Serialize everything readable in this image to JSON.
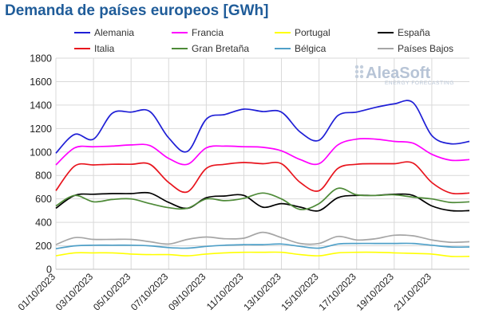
{
  "chart_data": {
    "type": "line",
    "title": "Demanda de países europeos [GWh]",
    "xlabel": "",
    "ylabel": "",
    "ylim": [
      0,
      1800
    ],
    "yticks": [
      0,
      200,
      400,
      600,
      800,
      1000,
      1200,
      1400,
      1600,
      1800
    ],
    "grid": true,
    "legend": "top",
    "x": [
      "01/10/2023",
      "02/10/2023",
      "03/10/2023",
      "04/10/2023",
      "05/10/2023",
      "06/10/2023",
      "07/10/2023",
      "08/10/2023",
      "09/10/2023",
      "10/10/2023",
      "11/10/2023",
      "12/10/2023",
      "13/10/2023",
      "14/10/2023",
      "15/10/2023",
      "16/10/2023",
      "17/10/2023",
      "18/10/2023",
      "19/10/2023",
      "20/10/2023",
      "21/10/2023",
      "22/10/2023",
      "23/10/2023"
    ],
    "xtick_labels": [
      "01/10/2023",
      "03/10/2023",
      "05/10/2023",
      "07/10/2023",
      "09/10/2023",
      "11/10/2023",
      "13/10/2023",
      "15/10/2023",
      "17/10/2023",
      "19/10/2023",
      "21/10/2023"
    ],
    "series": [
      {
        "name": "Alemania",
        "color": "#1f1fd6",
        "values": [
          990,
          1150,
          1110,
          1330,
          1340,
          1345,
          1120,
          1005,
          1280,
          1320,
          1365,
          1345,
          1340,
          1170,
          1100,
          1310,
          1340,
          1380,
          1410,
          1420,
          1140,
          1070,
          1090
        ]
      },
      {
        "name": "Francia",
        "color": "#ff00ff",
        "values": [
          890,
          1035,
          1045,
          1050,
          1060,
          1055,
          945,
          895,
          1035,
          1050,
          1045,
          1040,
          1010,
          935,
          900,
          1060,
          1110,
          1110,
          1090,
          1075,
          980,
          930,
          935
        ]
      },
      {
        "name": "Portugal",
        "color": "#ffff00",
        "values": [
          115,
          140,
          140,
          140,
          130,
          125,
          125,
          115,
          130,
          140,
          145,
          145,
          145,
          125,
          115,
          140,
          145,
          145,
          140,
          135,
          130,
          110,
          110
        ]
      },
      {
        "name": "España",
        "color": "#000000",
        "values": [
          520,
          630,
          640,
          645,
          645,
          650,
          570,
          520,
          610,
          625,
          630,
          530,
          560,
          530,
          500,
          610,
          630,
          630,
          640,
          630,
          540,
          500,
          500
        ]
      },
      {
        "name": "Italia",
        "color": "#e8141d",
        "values": [
          670,
          880,
          890,
          895,
          895,
          895,
          740,
          660,
          860,
          895,
          910,
          900,
          900,
          740,
          670,
          860,
          895,
          900,
          900,
          905,
          740,
          650,
          650
        ]
      },
      {
        "name": "Gran Bretaña",
        "color": "#4e8a38",
        "values": [
          540,
          630,
          575,
          595,
          600,
          560,
          525,
          520,
          600,
          585,
          605,
          650,
          600,
          510,
          560,
          690,
          635,
          630,
          635,
          615,
          600,
          570,
          575
        ]
      },
      {
        "name": "Bélgica",
        "color": "#4fa0c8",
        "values": [
          175,
          200,
          205,
          205,
          205,
          200,
          185,
          180,
          195,
          205,
          210,
          210,
          215,
          195,
          180,
          215,
          220,
          220,
          220,
          220,
          205,
          190,
          190
        ]
      },
      {
        "name": "Países Bajos",
        "color": "#a6a6a6",
        "values": [
          210,
          270,
          255,
          255,
          255,
          235,
          215,
          255,
          275,
          260,
          265,
          315,
          270,
          220,
          220,
          280,
          250,
          260,
          290,
          285,
          250,
          230,
          235
        ]
      }
    ]
  },
  "logo": {
    "brand": "AleaSoft",
    "tagline": "ENERGY FORECASTING"
  }
}
